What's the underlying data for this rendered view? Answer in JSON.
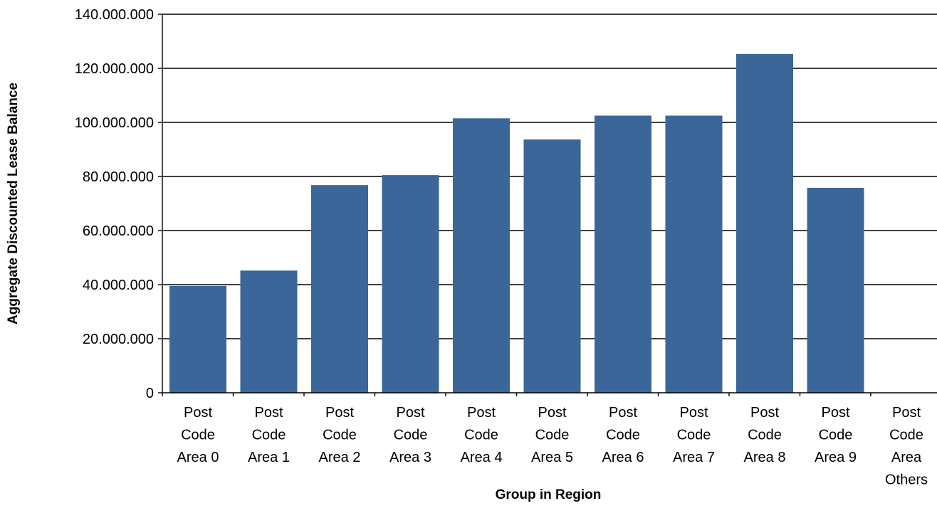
{
  "chart_data": {
    "type": "bar",
    "title": "",
    "xlabel": "Group in Region",
    "ylabel": "Aggregate Discounted Lease Balance",
    "categories": [
      "Post Code Area 0",
      "Post Code Area 1",
      "Post Code Area 2",
      "Post Code Area 3",
      "Post Code Area 4",
      "Post Code Area 5",
      "Post Code Area 6",
      "Post Code Area 7",
      "Post Code Area 8",
      "Post Code Area 9",
      "Post Code Area Others"
    ],
    "category_lines": [
      [
        "Post",
        "Code",
        "Area 0"
      ],
      [
        "Post",
        "Code",
        "Area 1"
      ],
      [
        "Post",
        "Code",
        "Area 2"
      ],
      [
        "Post",
        "Code",
        "Area 3"
      ],
      [
        "Post",
        "Code",
        "Area 4"
      ],
      [
        "Post",
        "Code",
        "Area 5"
      ],
      [
        "Post",
        "Code",
        "Area 6"
      ],
      [
        "Post",
        "Code",
        "Area 7"
      ],
      [
        "Post",
        "Code",
        "Area 8"
      ],
      [
        "Post",
        "Code",
        "Area 9"
      ],
      [
        "Post",
        "Code",
        "Area",
        "Others"
      ]
    ],
    "values": [
      39500000,
      45200000,
      76800000,
      80500000,
      101500000,
      93700000,
      102500000,
      102500000,
      125300000,
      75800000,
      0
    ],
    "ylim": [
      0,
      140000000
    ],
    "yticks": [
      0,
      20000000,
      40000000,
      60000000,
      80000000,
      100000000,
      120000000,
      140000000
    ],
    "ytick_labels": [
      "0",
      "20.000.000",
      "40.000.000",
      "60.000.000",
      "80.000.000",
      "100.000.000",
      "120.000.000",
      "140.000.000"
    ],
    "grid": true,
    "legend": "none",
    "bar_color": "#3b6699"
  }
}
